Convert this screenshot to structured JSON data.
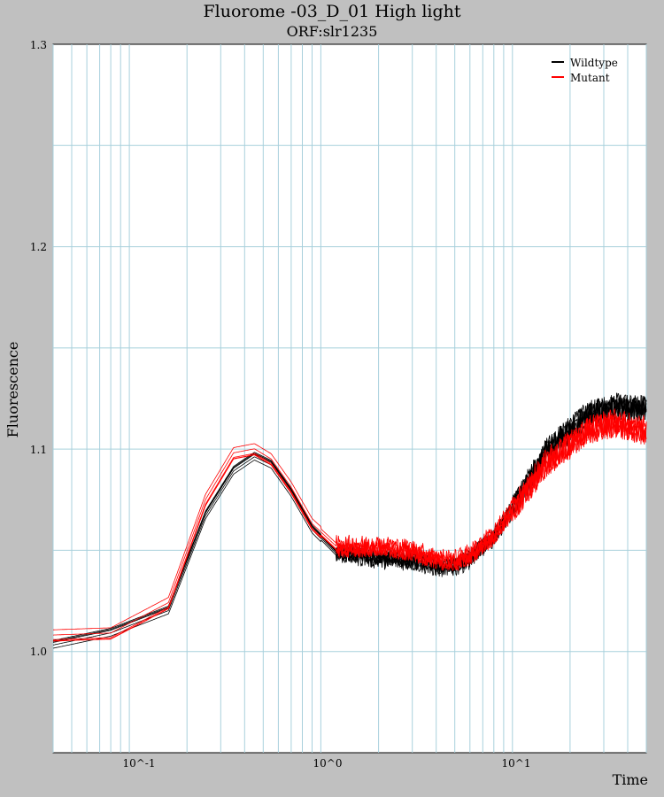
{
  "chart_data": {
    "type": "line",
    "title": "Fluorome -03_D_01 High light",
    "subtitle": "ORF:slr1235",
    "xlabel": "Time",
    "ylabel": "Fluorescence",
    "xscale": "log",
    "xlim": [
      0.04,
      50
    ],
    "ylim": [
      0.95,
      1.3
    ],
    "yticks": [
      "1.0",
      "1.1",
      "1.2",
      "1.3"
    ],
    "xticks": [
      "10^-1",
      "10^0",
      "10^1"
    ],
    "grid": true,
    "legend_position": "top-right",
    "x": [
      0.04,
      0.08,
      0.16,
      0.25,
      0.35,
      0.45,
      0.55,
      0.7,
      0.9,
      1.2,
      2,
      3,
      4,
      5,
      6,
      8,
      10,
      15,
      25,
      35,
      45
    ],
    "series": [
      {
        "name": "Wildtype",
        "color": "#000000",
        "values": [
          1.004,
          1.01,
          1.021,
          1.068,
          1.09,
          1.097,
          1.093,
          1.079,
          1.061,
          1.049,
          1.046,
          1.045,
          1.042,
          1.042,
          1.046,
          1.057,
          1.071,
          1.099,
          1.118,
          1.121,
          1.12
        ]
      },
      {
        "name": "Mutant",
        "color": "#ff0000",
        "values": [
          1.008,
          1.009,
          1.024,
          1.075,
          1.098,
          1.1,
          1.095,
          1.081,
          1.063,
          1.052,
          1.052,
          1.05,
          1.046,
          1.045,
          1.048,
          1.058,
          1.07,
          1.093,
          1.11,
          1.113,
          1.11
        ]
      }
    ]
  }
}
